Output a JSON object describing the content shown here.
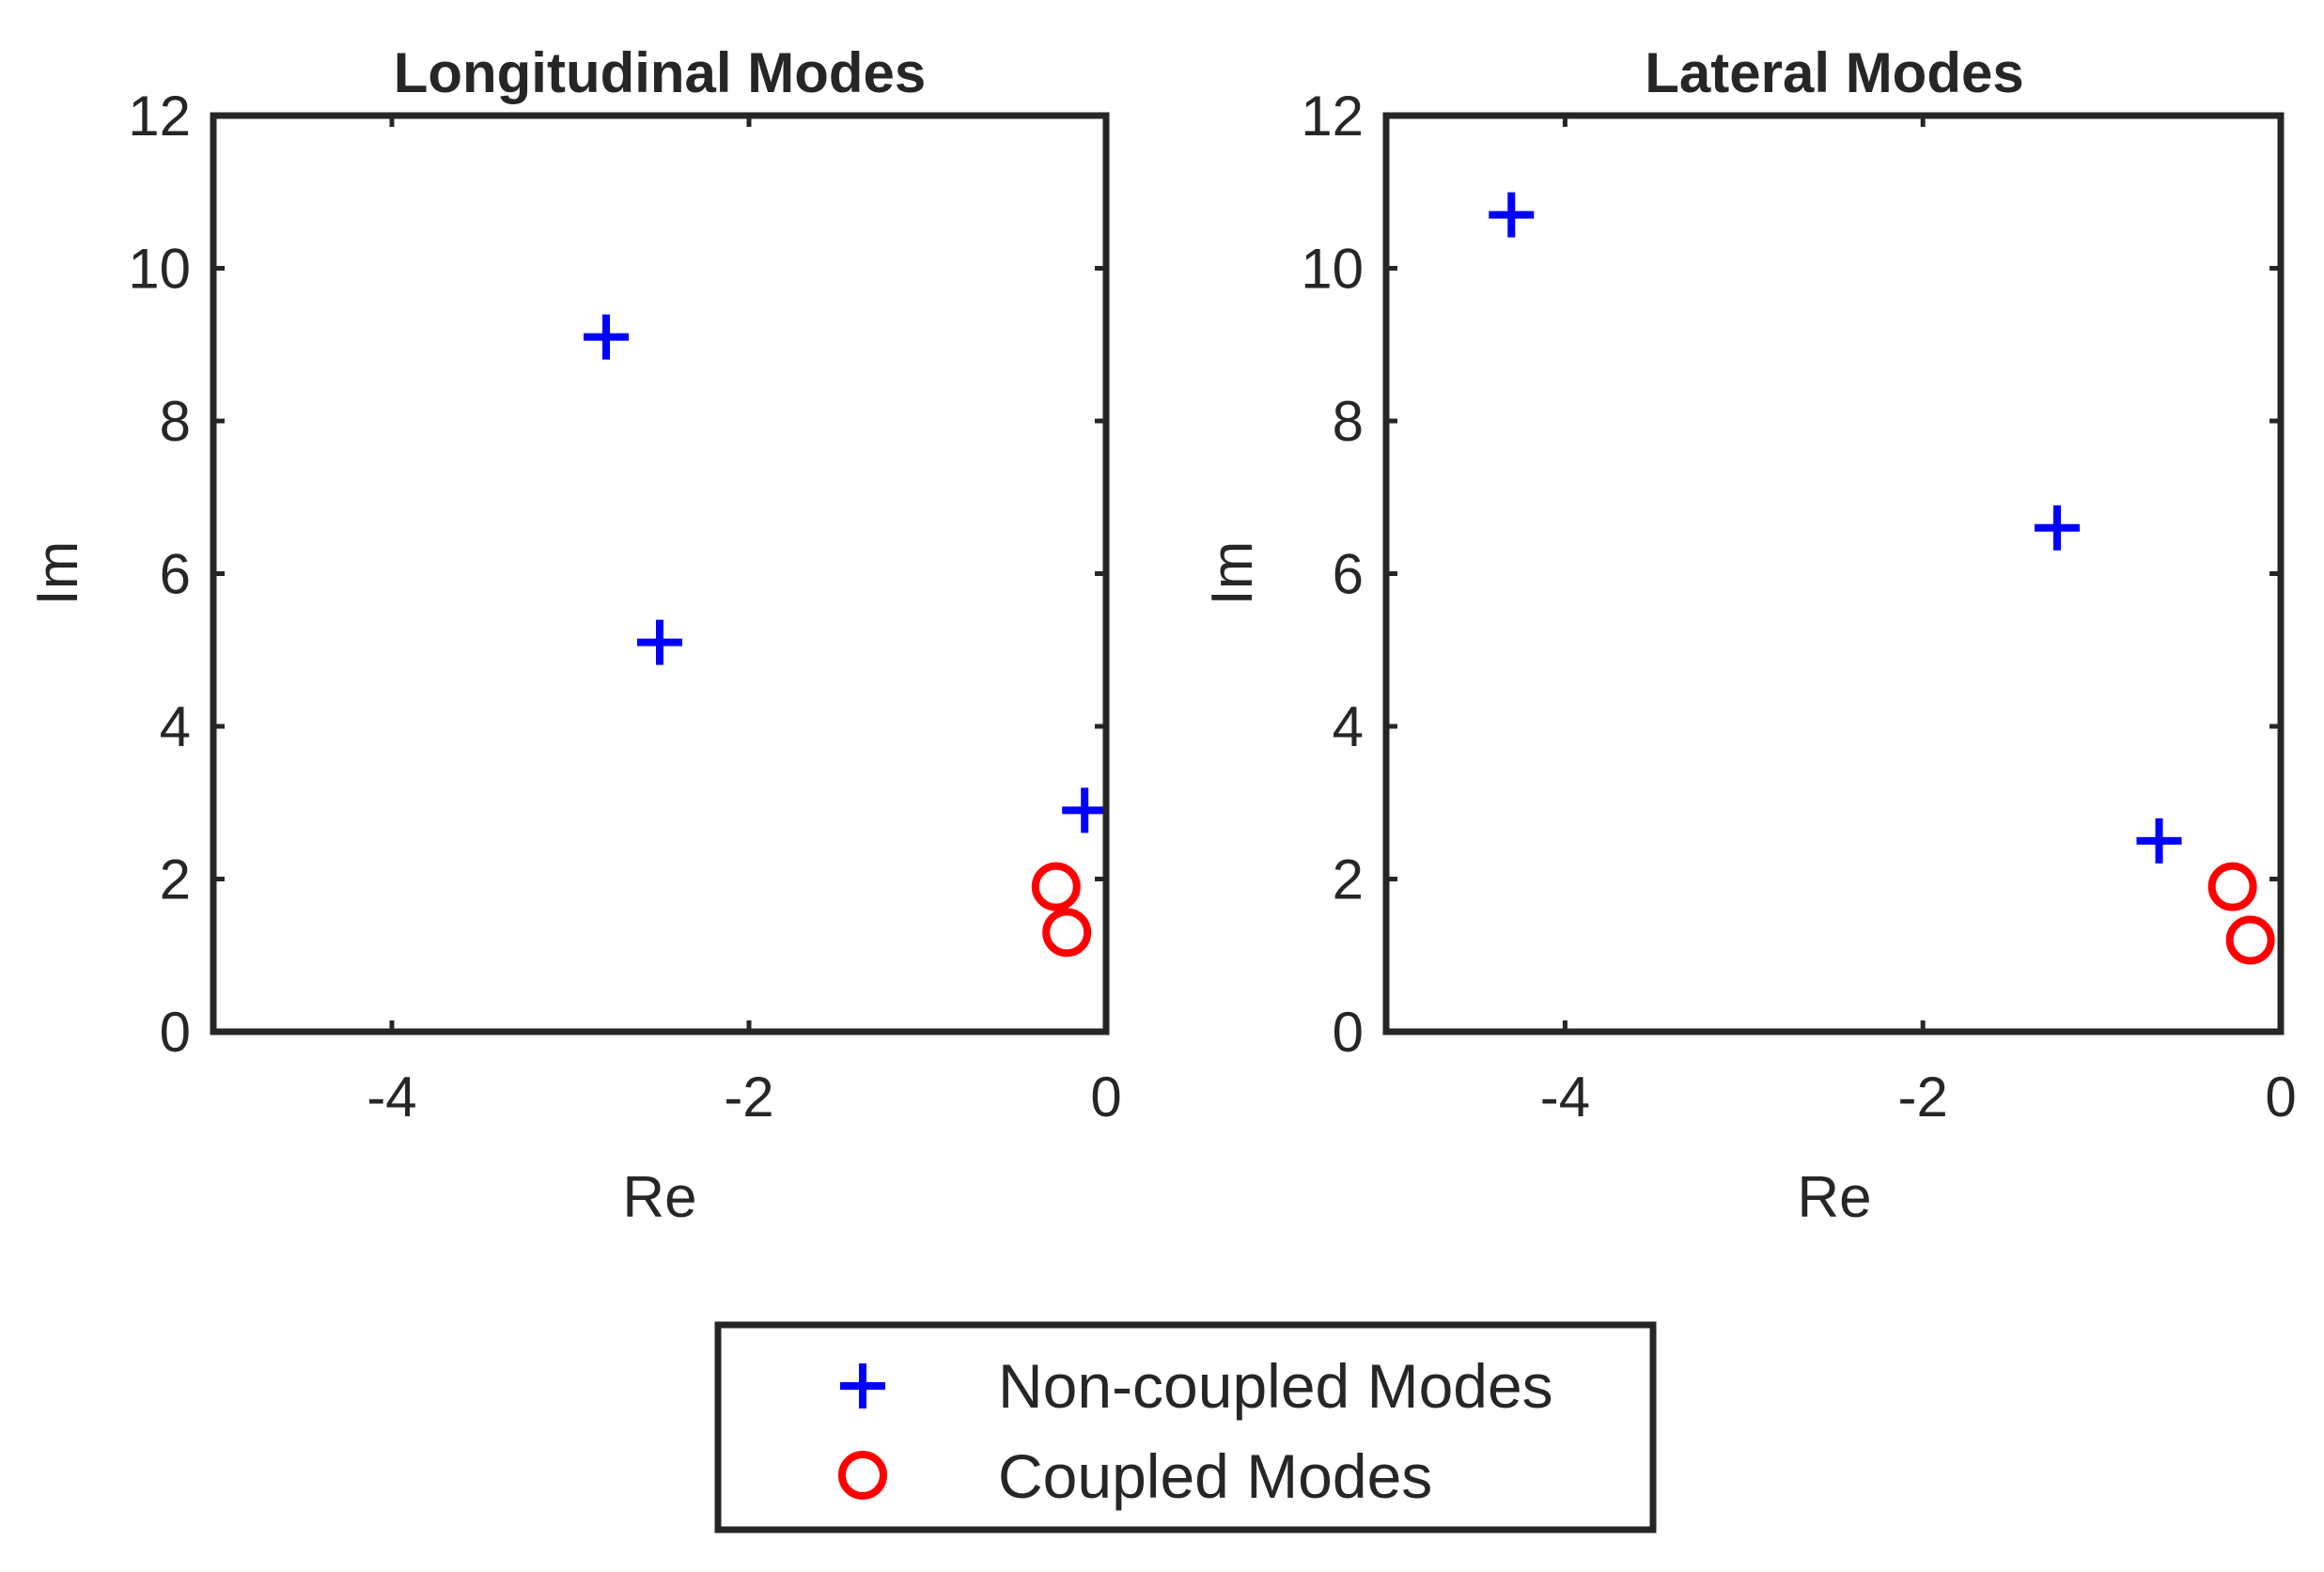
{
  "chart_data": [
    {
      "type": "scatter",
      "title": "Longitudinal Modes",
      "xlabel": "Re",
      "ylabel": "Im",
      "xlim": [
        -5,
        0
      ],
      "ylim": [
        0,
        12
      ],
      "xticks": [
        -4,
        -2,
        0
      ],
      "yticks": [
        0,
        2,
        4,
        6,
        8,
        10,
        12
      ],
      "grid": false,
      "series": [
        {
          "name": "Non-coupled Modes",
          "marker": "plus",
          "color": "#0000ff",
          "points": [
            {
              "x": -2.8,
              "y": 9.1
            },
            {
              "x": -2.5,
              "y": 5.1
            },
            {
              "x": -0.12,
              "y": 2.9
            }
          ]
        },
        {
          "name": "Coupled Modes",
          "marker": "circle",
          "color": "#ff0000",
          "points": [
            {
              "x": -0.28,
              "y": 1.9
            },
            {
              "x": -0.22,
              "y": 1.3
            }
          ]
        }
      ]
    },
    {
      "type": "scatter",
      "title": "Lateral Modes",
      "xlabel": "Re",
      "ylabel": "Im",
      "xlim": [
        -5,
        0
      ],
      "ylim": [
        0,
        12
      ],
      "xticks": [
        -4,
        -2,
        0
      ],
      "yticks": [
        0,
        2,
        4,
        6,
        8,
        10,
        12
      ],
      "grid": false,
      "series": [
        {
          "name": "Non-coupled Modes",
          "marker": "plus",
          "color": "#0000ff",
          "points": [
            {
              "x": -4.3,
              "y": 10.7
            },
            {
              "x": -1.25,
              "y": 6.6
            },
            {
              "x": -0.68,
              "y": 2.5
            }
          ]
        },
        {
          "name": "Coupled Modes",
          "marker": "circle",
          "color": "#ff0000",
          "points": [
            {
              "x": -0.27,
              "y": 1.9
            },
            {
              "x": -0.17,
              "y": 1.2
            }
          ]
        }
      ]
    }
  ],
  "legend": {
    "placement": "bottom-center",
    "items": [
      {
        "label": "Non-coupled Modes",
        "marker": "plus",
        "color": "#0000ff"
      },
      {
        "label": "Coupled Modes",
        "marker": "circle",
        "color": "#ff0000"
      }
    ]
  }
}
